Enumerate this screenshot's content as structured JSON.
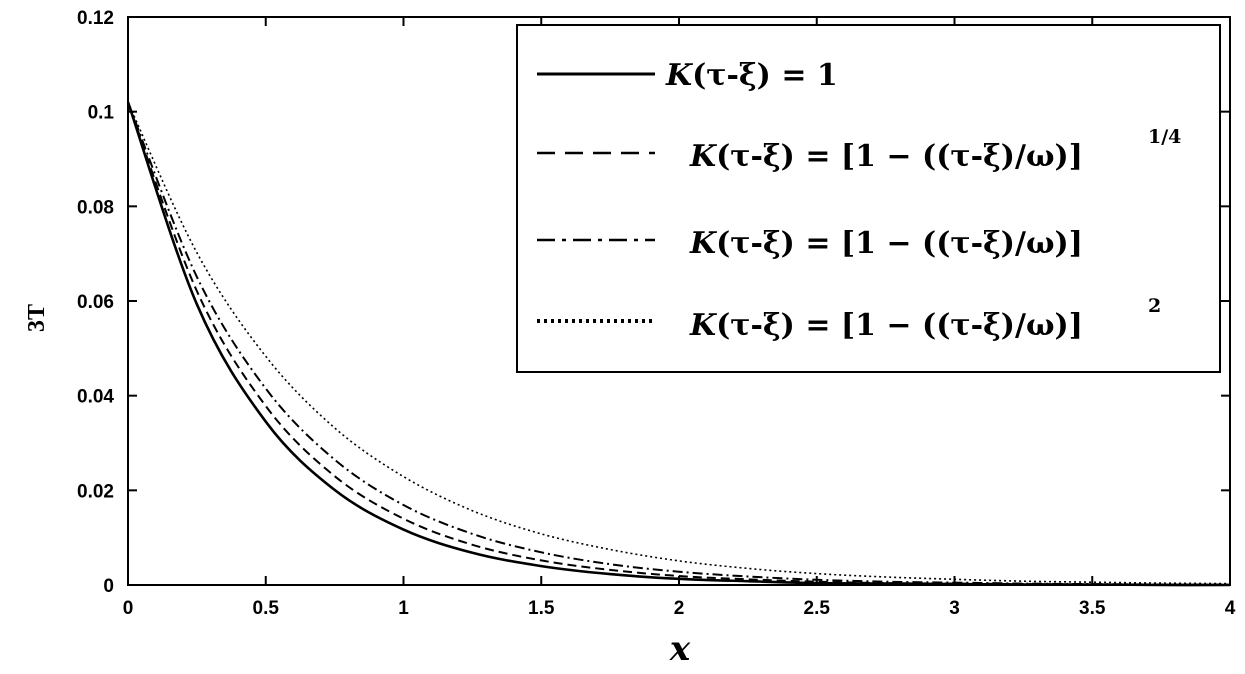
{
  "chart_data": {
    "type": "line",
    "xlabel": "x",
    "ylabel": "3T",
    "xlim": [
      0,
      4
    ],
    "ylim": [
      0,
      0.12
    ],
    "x_ticks": [
      "0",
      "0.5",
      "1",
      "1.5",
      "2",
      "2.5",
      "3",
      "3.5",
      "4"
    ],
    "y_ticks": [
      "0",
      "0.02",
      "0.04",
      "0.06",
      "0.08",
      "0.1",
      "0.12"
    ],
    "grid": false,
    "legend_position": "top-right",
    "x": [
      0,
      0.25,
      0.5,
      0.75,
      1,
      1.25,
      1.5,
      1.75,
      2,
      2.25,
      2.5,
      2.75,
      3,
      3.25,
      3.5,
      3.75,
      4
    ],
    "series": [
      {
        "name": "K(τ-ξ) = 1",
        "style": "solid",
        "color": "#000000",
        "y": [
          0.102,
          0.0593,
          0.0345,
          0.0201,
          0.0117,
          0.0068,
          0.004,
          0.0023,
          0.0013,
          0.0008,
          0.0004,
          0.0003,
          0.0002,
          0.0001,
          0.0001,
          0.0,
          0.0
        ]
      },
      {
        "name": "K(τ-ξ) = [1 − ((τ-ξ)/ω)]^1/4",
        "style": "dashed",
        "color": "#000000",
        "y": [
          0.102,
          0.0621,
          0.0378,
          0.023,
          0.014,
          0.0085,
          0.0052,
          0.0032,
          0.0019,
          0.0012,
          0.0007,
          0.0004,
          0.0003,
          0.0002,
          0.0001,
          0.0001,
          0.0
        ]
      },
      {
        "name": "K(τ-ξ) = [1 − ((τ-ξ)/ω)]",
        "style": "dashdot",
        "color": "#000000",
        "y": [
          0.102,
          0.0651,
          0.0415,
          0.0265,
          0.0169,
          0.0108,
          0.0069,
          0.0044,
          0.0028,
          0.0018,
          0.0011,
          0.0007,
          0.0005,
          0.0003,
          0.0002,
          0.0001,
          0.0001
        ]
      },
      {
        "name": "K(τ-ξ) = [1 − ((τ-ξ)/ω)]^2",
        "style": "dotted",
        "color": "#000000",
        "y": [
          0.102,
          0.0702,
          0.0483,
          0.0332,
          0.0229,
          0.0157,
          0.0108,
          0.0075,
          0.0051,
          0.0035,
          0.0024,
          0.0017,
          0.0012,
          0.0008,
          0.0006,
          0.0004,
          0.0003
        ]
      }
    ],
    "legend_text": {
      "k": "K",
      "arg": "(τ-ξ)",
      "eq": " = ",
      "one": "1",
      "bracket_open": "[",
      "body": "1 − ((τ-ξ)/ω)",
      "bracket_close": "]",
      "sup_1": "1/4",
      "sup_3": "2"
    }
  }
}
